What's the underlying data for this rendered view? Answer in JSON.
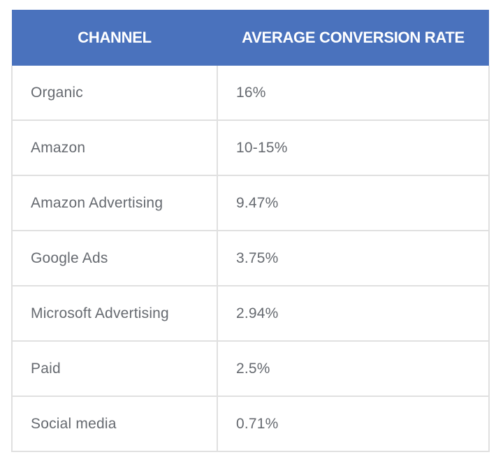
{
  "table": {
    "headers": [
      "CHANNEL",
      "AVERAGE CONVERSION RATE"
    ],
    "rows": [
      {
        "channel": "Organic",
        "rate": "16%"
      },
      {
        "channel": "Amazon",
        "rate": "10-15%"
      },
      {
        "channel": "Amazon Advertising",
        "rate": "9.47%"
      },
      {
        "channel": "Google Ads",
        "rate": "3.75%"
      },
      {
        "channel": "Microsoft Advertising",
        "rate": "2.94%"
      },
      {
        "channel": "Paid",
        "rate": "2.5%"
      },
      {
        "channel": "Social media",
        "rate": "0.71%"
      }
    ]
  },
  "colors": {
    "header_bg": "#4a72bd",
    "header_text": "#ffffff",
    "cell_text": "#666a70",
    "border": "#e0e0e0"
  }
}
